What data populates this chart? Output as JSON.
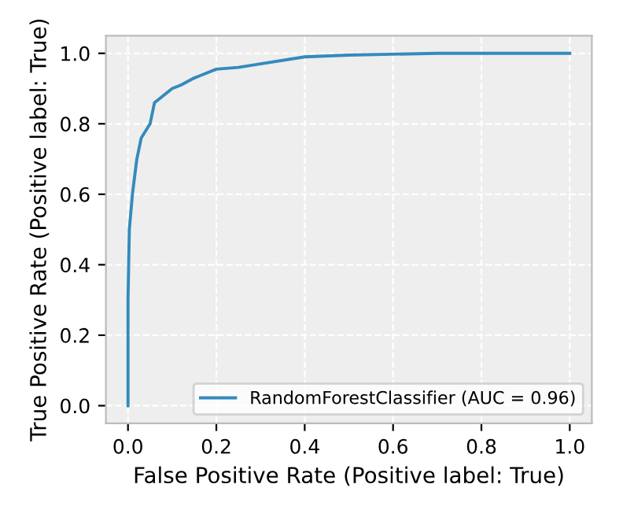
{
  "chart_data": {
    "type": "line",
    "xlabel": "False Positive Rate (Positive label: True)",
    "ylabel": "True Positive Rate (Positive label: True)",
    "xlim": [
      -0.05,
      1.05
    ],
    "ylim": [
      -0.05,
      1.05
    ],
    "xticks": [
      {
        "value": 0,
        "label": "0.0"
      },
      0.2,
      0.4,
      0.6,
      0.8,
      {
        "value": 1,
        "label": "1.0"
      }
    ],
    "yticks": [
      {
        "value": 0,
        "label": "0.0"
      },
      0.2,
      0.4,
      0.6,
      0.8,
      {
        "value": 1,
        "label": "1.0"
      }
    ],
    "grid": true,
    "legend": "bottom right",
    "series": [
      {
        "name": "RandomForestClassifier (AUC = 0.96)",
        "color": "#348abd",
        "x": [
          0,
          0,
          0.003,
          0.01,
          0.02,
          0.03,
          0.05,
          0.06,
          0.08,
          0.1,
          0.12,
          0.15,
          0.2,
          0.25,
          0.3,
          0.4,
          0.5,
          0.7,
          1.0
        ],
        "values": [
          0,
          0.3,
          0.5,
          0.6,
          0.7,
          0.76,
          0.8,
          0.86,
          0.88,
          0.9,
          0.91,
          0.93,
          0.955,
          0.96,
          0.97,
          0.99,
          0.995,
          1.0,
          1.0
        ]
      }
    ]
  }
}
